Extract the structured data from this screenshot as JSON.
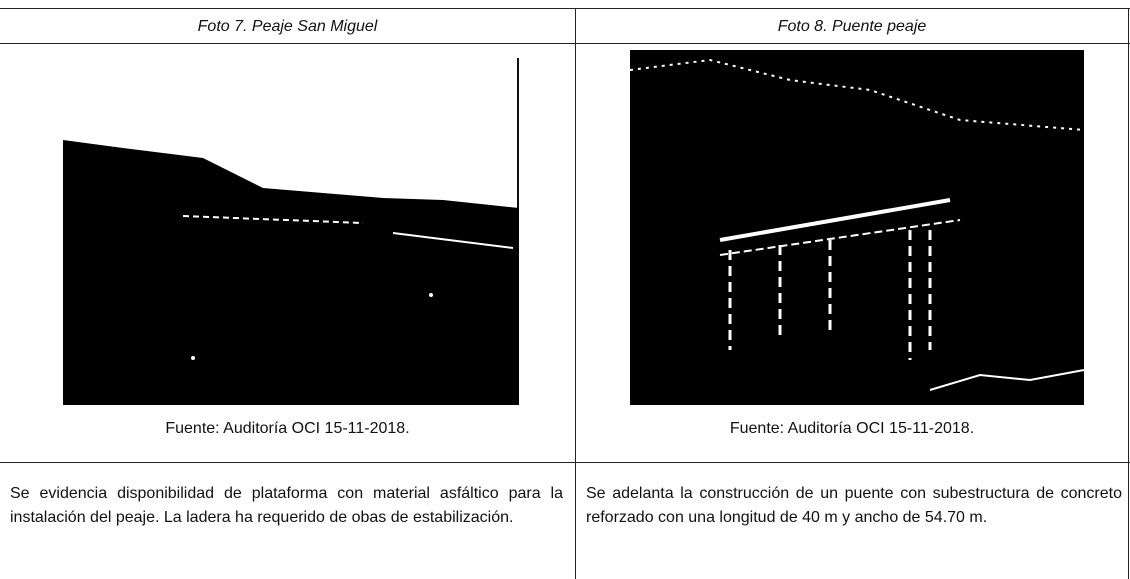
{
  "table": {
    "header": [
      "Foto 7. Peaje San Miguel",
      "Foto 8.  Puente peaje"
    ],
    "captions": [
      "Fuente: Auditoría OCI 15-11-2018.",
      "Fuente: Auditoría OCI 15-11-2018."
    ],
    "descriptions": [
      "Se evidencia disponibilidad de plataforma con material asfáltico para la instalación del peaje. La ladera ha requerido de obas de estabilización.",
      "Se adelanta la construcción de un puente con subestructura de concreto reforzado con una longitud de 40 m y ancho de 54.70 m."
    ]
  }
}
